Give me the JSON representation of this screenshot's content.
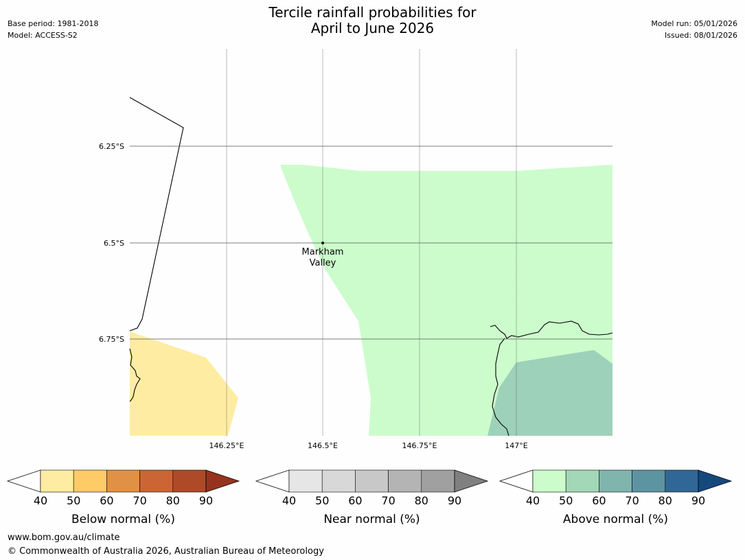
{
  "title_line1": "Tercile rainfall probabilities for",
  "title_line2": "April to June 2026",
  "base_period": "Base period: 1981-2018",
  "model": "Model: ACCESS-S2",
  "model_run": "Model run: 05/01/2026",
  "issued": "Issued: 08/01/2026",
  "map": {
    "lat_labels": [
      "6.25°S",
      "6.5°S",
      "6.75°S"
    ],
    "lon_labels": [
      "146.25°E",
      "146.5°E",
      "146.75°E",
      "147°E"
    ],
    "place_line1": "Markham",
    "place_line2": "Valley",
    "colors": {
      "above_40_50": "#ccfccc",
      "above_50_60": "#9ed1b9",
      "below_40_50": "#feeca3"
    }
  },
  "colorbars": {
    "ticks": [
      "40",
      "50",
      "60",
      "70",
      "80",
      "90"
    ],
    "below": {
      "label": "Below normal (%)",
      "colors": [
        "#feeca3",
        "#fecb66",
        "#e09145",
        "#cb6634",
        "#ae4a28",
        "#96331f"
      ]
    },
    "near": {
      "label": "Near normal (%)",
      "colors": [
        "#e6e6e6",
        "#d8d8d8",
        "#c8c8c8",
        "#b4b4b4",
        "#a0a0a0",
        "#808080"
      ]
    },
    "above": {
      "label": "Above normal (%)",
      "colors": [
        "#ccfccc",
        "#a2d7b8",
        "#80b5ae",
        "#5c94a2",
        "#306797",
        "#15487e"
      ]
    }
  },
  "footer_url": "www.bom.gov.au/climate",
  "footer_copyright": "© Commonwealth of Australia 2026, Australian Bureau of Meteorology"
}
